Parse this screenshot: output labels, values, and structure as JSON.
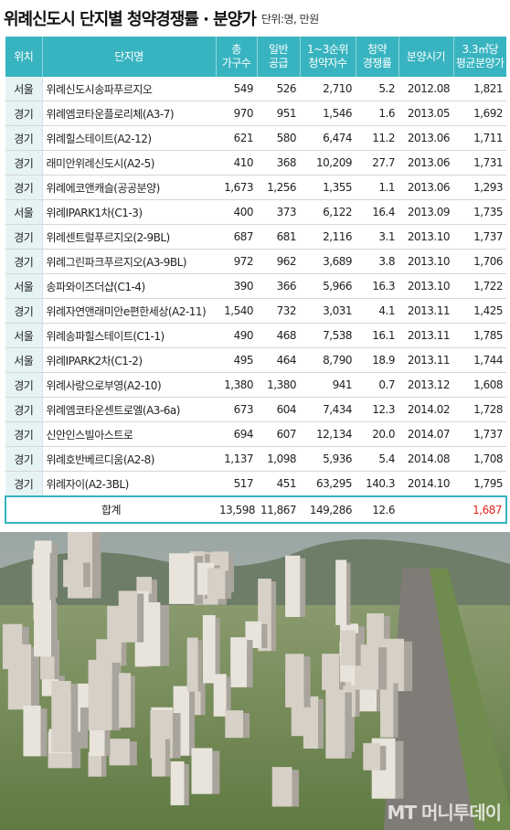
{
  "title": {
    "main": "위례신도시 단지별 청약경쟁률 · 분양가",
    "unit": "단위:명, 만원"
  },
  "columns": [
    {
      "line1": "위치",
      "line2": ""
    },
    {
      "line1": "단지명",
      "line2": ""
    },
    {
      "line1": "총",
      "line2": "가구수"
    },
    {
      "line1": "일반",
      "line2": "공급"
    },
    {
      "line1": "1~3순위",
      "line2": "청약자수"
    },
    {
      "line1": "청약",
      "line2": "경쟁률"
    },
    {
      "line1": "분양시기",
      "line2": ""
    },
    {
      "line1": "3.3㎡당",
      "line2": "평균분양가"
    }
  ],
  "rows": [
    {
      "region": "서울",
      "name": "위례신도시송파푸르지오",
      "households": "549",
      "general": "526",
      "applicants": "2,710",
      "rate": "5.2",
      "period": "2012.08",
      "price": "1,821"
    },
    {
      "region": "경기",
      "name": "위례엠코타운플로리체(A3-7)",
      "households": "970",
      "general": "951",
      "applicants": "1,546",
      "rate": "1.6",
      "period": "2013.05",
      "price": "1,692"
    },
    {
      "region": "경기",
      "name": "위례힐스테이트(A2-12)",
      "households": "621",
      "general": "580",
      "applicants": "6,474",
      "rate": "11.2",
      "period": "2013.06",
      "price": "1,711"
    },
    {
      "region": "경기",
      "name": "래미안위례신도시(A2-5)",
      "households": "410",
      "general": "368",
      "applicants": "10,209",
      "rate": "27.7",
      "period": "2013.06",
      "price": "1,731"
    },
    {
      "region": "경기",
      "name": "위례에코앤캐슬(공공분양)",
      "households": "1,673",
      "general": "1,256",
      "applicants": "1,355",
      "rate": "1.1",
      "period": "2013.06",
      "price": "1,293"
    },
    {
      "region": "서울",
      "name": "위례IPARK1차(C1-3)",
      "households": "400",
      "general": "373",
      "applicants": "6,122",
      "rate": "16.4",
      "period": "2013.09",
      "price": "1,735"
    },
    {
      "region": "경기",
      "name": "위례센트럴푸르지오(2-9BL)",
      "households": "687",
      "general": "681",
      "applicants": "2,116",
      "rate": "3.1",
      "period": "2013.10",
      "price": "1,737"
    },
    {
      "region": "경기",
      "name": "위례그린파크푸르지오(A3-9BL)",
      "households": "972",
      "general": "962",
      "applicants": "3,689",
      "rate": "3.8",
      "period": "2013.10",
      "price": "1,706"
    },
    {
      "region": "서울",
      "name": "송파와이즈더샵(C1-4)",
      "households": "390",
      "general": "366",
      "applicants": "5,966",
      "rate": "16.3",
      "period": "2013.10",
      "price": "1,722"
    },
    {
      "region": "경기",
      "name": "위례자연앤래미안e편한세상(A2-11)",
      "households": "1,540",
      "general": "732",
      "applicants": "3,031",
      "rate": "4.1",
      "period": "2013.11",
      "price": "1,425"
    },
    {
      "region": "서울",
      "name": "위례송파힐스테이트(C1-1)",
      "households": "490",
      "general": "468",
      "applicants": "7,538",
      "rate": "16.1",
      "period": "2013.11",
      "price": "1,785"
    },
    {
      "region": "서울",
      "name": "위례IPARK2차(C1-2)",
      "households": "495",
      "general": "464",
      "applicants": "8,790",
      "rate": "18.9",
      "period": "2013.11",
      "price": "1,744"
    },
    {
      "region": "경기",
      "name": "위례사랑으로부영(A2-10)",
      "households": "1,380",
      "general": "1,380",
      "applicants": "941",
      "rate": "0.7",
      "period": "2013.12",
      "price": "1,608"
    },
    {
      "region": "경기",
      "name": "위례엠코타운센트로엘(A3-6a)",
      "households": "673",
      "general": "604",
      "applicants": "7,434",
      "rate": "12.3",
      "period": "2014.02",
      "price": "1,728"
    },
    {
      "region": "경기",
      "name": "신안인스빌아스트로",
      "households": "694",
      "general": "607",
      "applicants": "12,134",
      "rate": "20.0",
      "period": "2014.07",
      "price": "1,737"
    },
    {
      "region": "경기",
      "name": "위례호반베르디움(A2-8)",
      "households": "1,137",
      "general": "1,098",
      "applicants": "5,936",
      "rate": "5.4",
      "period": "2014.08",
      "price": "1,708"
    },
    {
      "region": "경기",
      "name": "위례자이(A2-3BL)",
      "households": "517",
      "general": "451",
      "applicants": "63,295",
      "rate": "140.3",
      "period": "2014.10",
      "price": "1,795"
    }
  ],
  "total": {
    "label": "합계",
    "households": "13,598",
    "general": "11,867",
    "applicants": "149,286",
    "rate": "12.6",
    "period": "",
    "price": "1,687"
  },
  "watermark": "MT 머니투데이",
  "colors": {
    "header": "#38b4c0",
    "region_bg": "#e6f3f5",
    "highlight": "#e2261c"
  }
}
